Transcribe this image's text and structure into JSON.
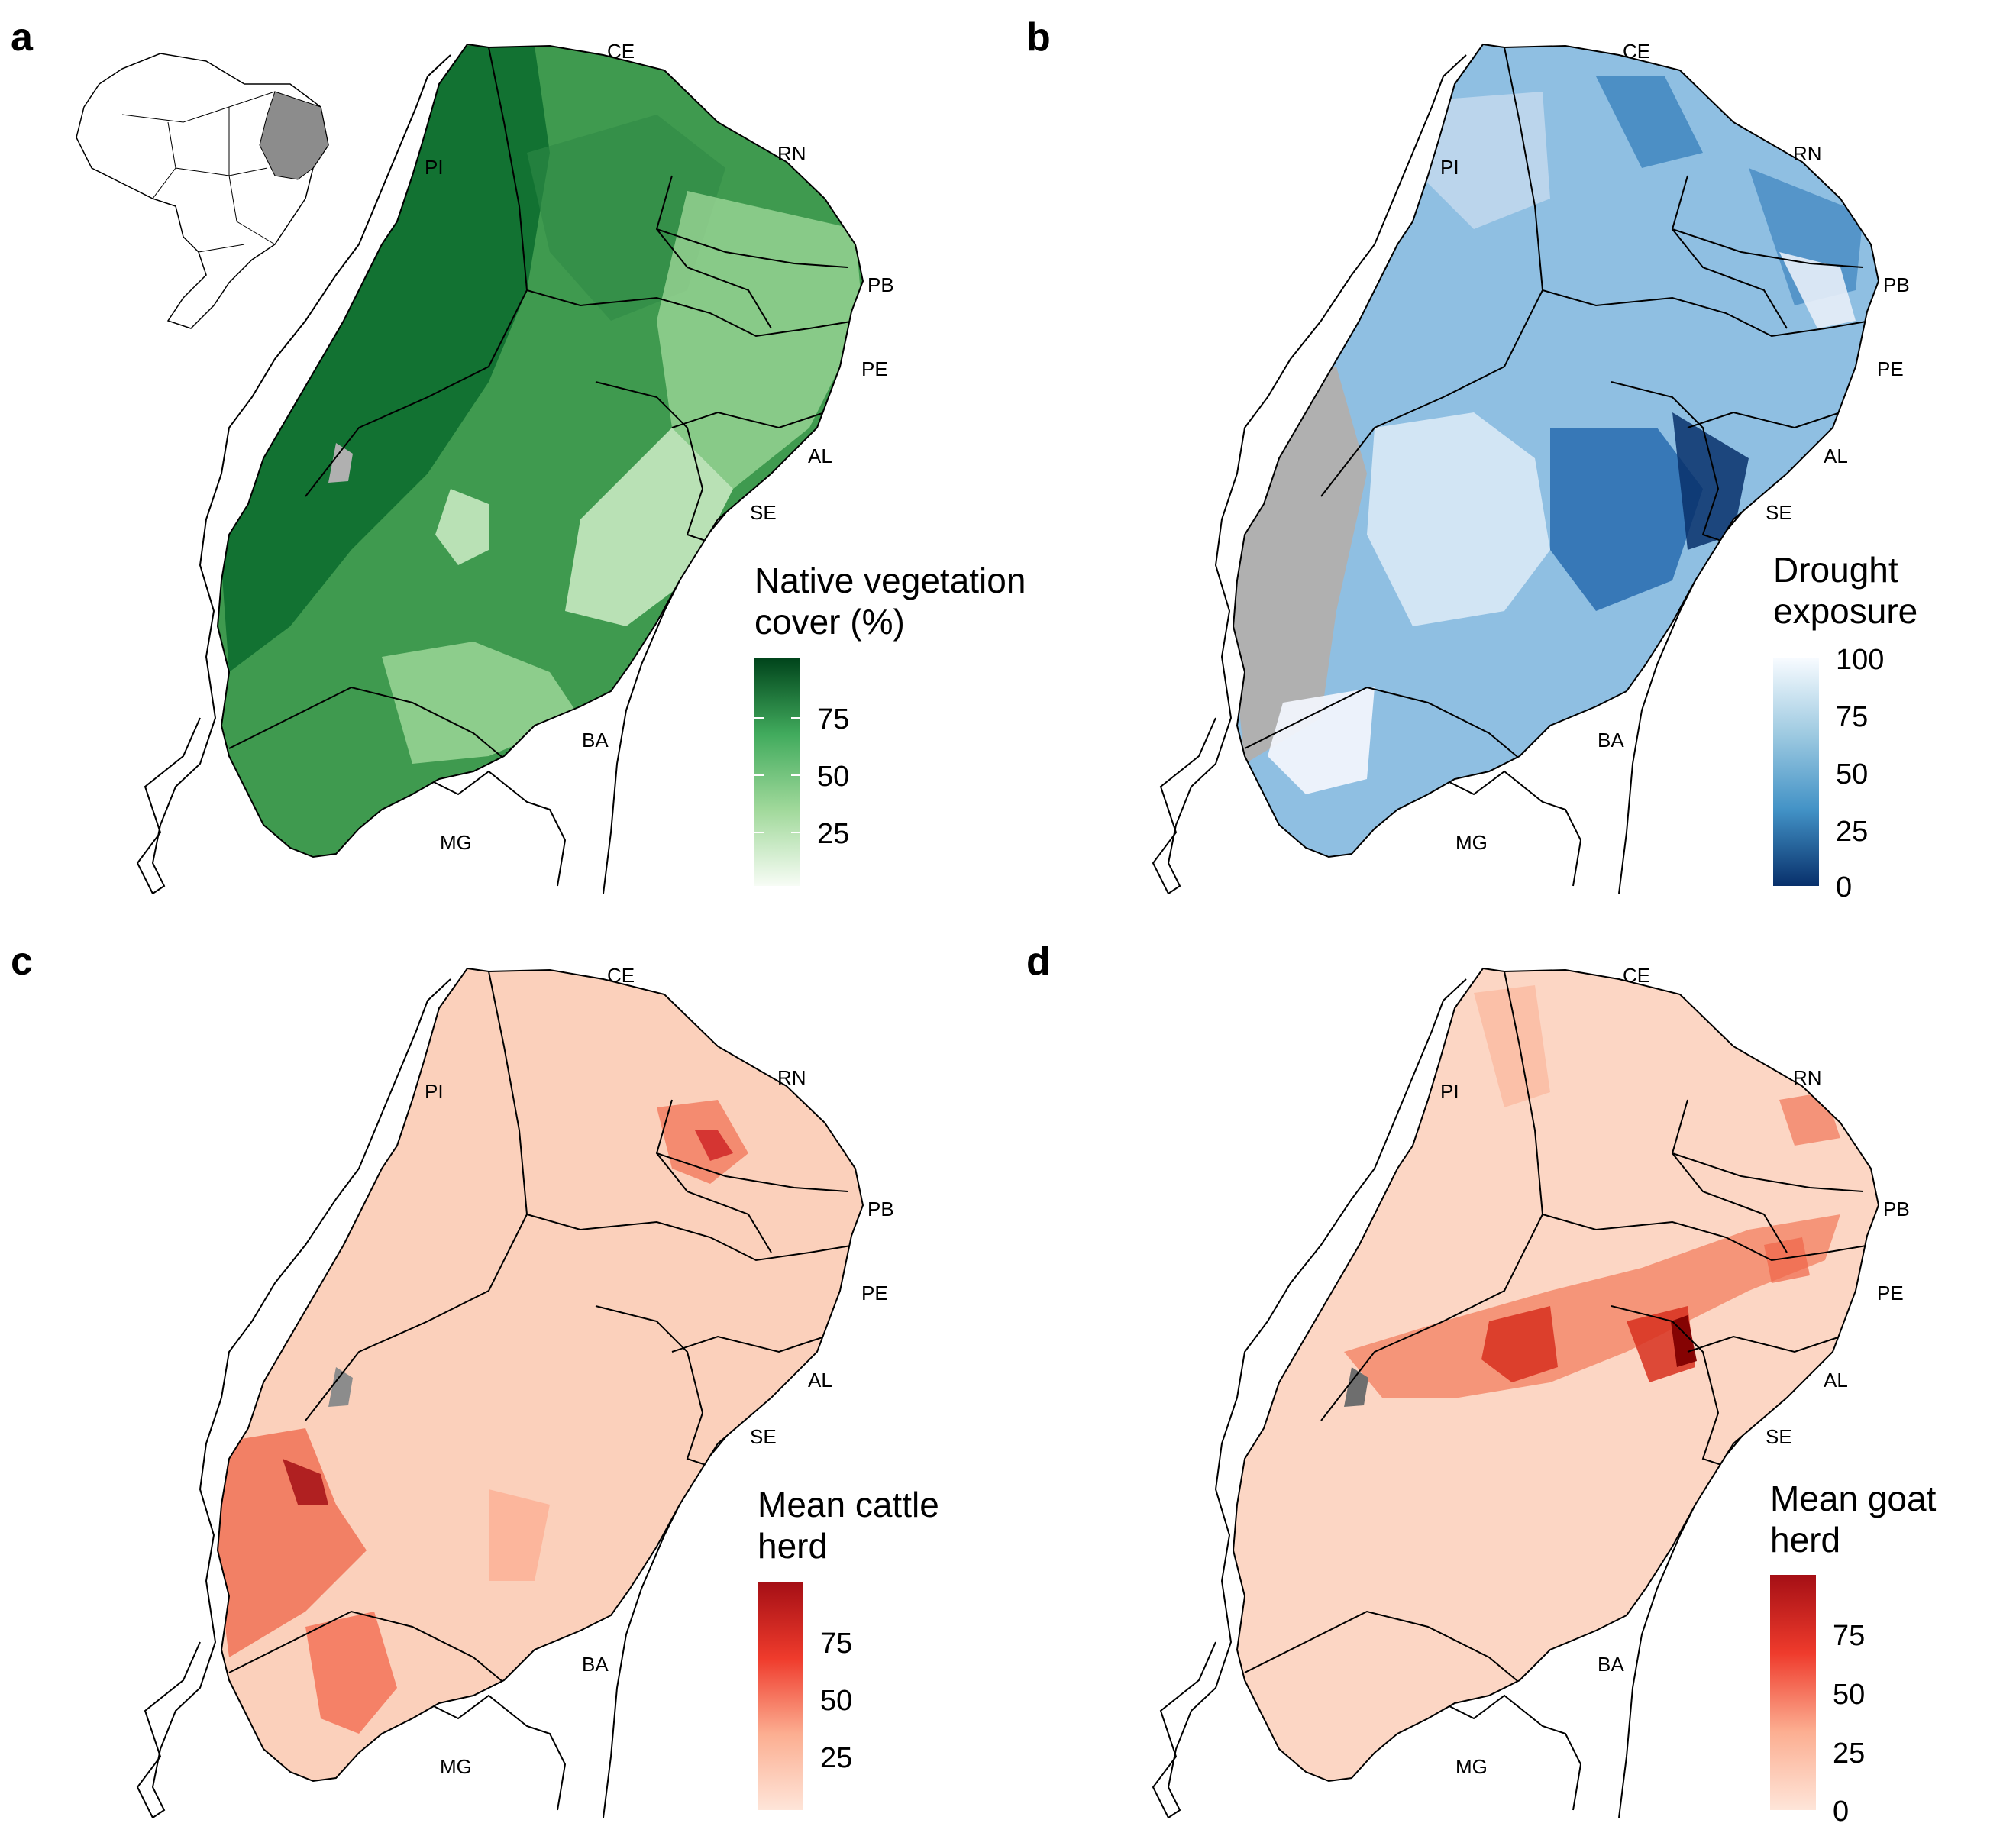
{
  "panels": [
    {
      "letter": "a",
      "legend": {
        "title_lines": [
          "Native vegetation",
          "cover (%)"
        ],
        "ticks": [
          "75",
          "50",
          "25"
        ],
        "colors": [
          "#f7fcf5",
          "#a1d99b",
          "#41ab5d",
          "#00441b"
        ]
      },
      "fill": "#3f9a4f",
      "na_fill": "#b0b0b0",
      "inset_map": true
    },
    {
      "letter": "b",
      "legend": {
        "title_lines": [
          "Drought",
          "exposure"
        ],
        "ticks": [
          "100",
          "75",
          "50",
          "25",
          "0"
        ],
        "colors": [
          "#f7fbff",
          "#9ecae1",
          "#4292c6",
          "#08306b"
        ]
      },
      "fill": "#8fbfe2",
      "na_fill": "#b0b0b0",
      "inset_map": false
    },
    {
      "letter": "c",
      "legend": {
        "title_lines": [
          "Mean cattle",
          "herd"
        ],
        "ticks": [
          "75",
          "50",
          "25"
        ],
        "colors": [
          "#fee5d9",
          "#fcae91",
          "#ef3b2c",
          "#a50f15"
        ]
      },
      "fill": "#fbd0bb",
      "na_fill": "#8c8c8c",
      "inset_map": false
    },
    {
      "letter": "d",
      "legend": {
        "title_lines": [
          "Mean goat",
          "herd"
        ],
        "ticks": [
          "75",
          "50",
          "25",
          "0"
        ],
        "colors": [
          "#fee5d9",
          "#fcae91",
          "#ef3b2c",
          "#a50f15"
        ]
      },
      "fill": "#fcd6c4",
      "na_fill": "#6e6e6e",
      "inset_map": false
    }
  ],
  "state_labels": [
    "CE",
    "RN",
    "PI",
    "PB",
    "PE",
    "AL",
    "SE",
    "BA",
    "MG"
  ],
  "colors": {
    "state_border": "#000000",
    "background": "#ffffff"
  }
}
